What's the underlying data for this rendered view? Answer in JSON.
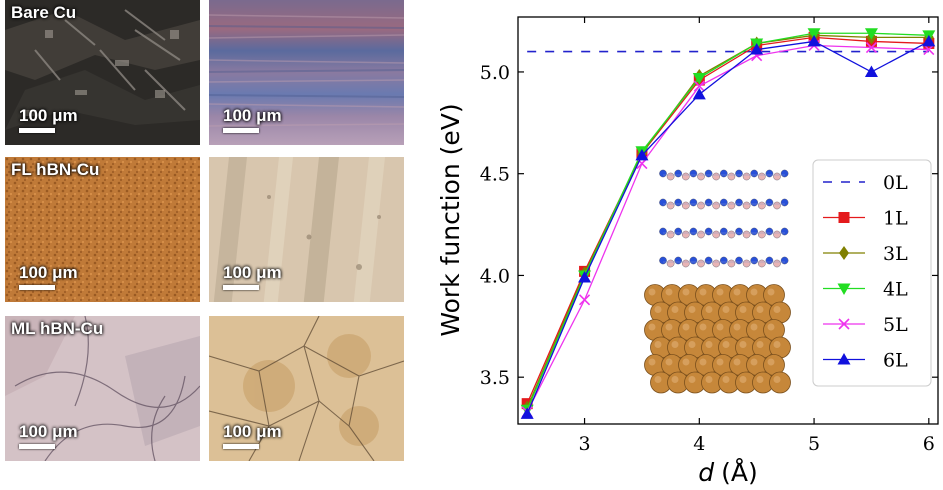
{
  "panels": {
    "row_labels": [
      "Bare Cu",
      "FL hBN-Cu",
      "ML hBN-Cu"
    ],
    "scale_label": "100 μm"
  },
  "chart_data": {
    "type": "line",
    "xlabel_italic": "d",
    "xlabel_unit": "(Å)",
    "ylabel": "Work function (eV)",
    "xlim": [
      2.42,
      6.08
    ],
    "ylim": [
      3.27,
      5.27
    ],
    "xticks": [
      3,
      4,
      5,
      6
    ],
    "yticks": [
      3.5,
      4.0,
      4.5,
      5.0
    ],
    "ytick_labels": [
      "3.5",
      "4.0",
      "4.5",
      "5.0"
    ],
    "grid": false,
    "legend_position": "center-right",
    "x": [
      2.5,
      3.0,
      3.5,
      4.0,
      4.5,
      5.0,
      5.5,
      6.0
    ],
    "series": [
      {
        "name": "0L",
        "color": "#2222cc",
        "marker": "none",
        "dashed": true,
        "values": [
          5.1,
          5.1,
          5.1,
          5.1,
          5.1,
          5.1,
          5.1,
          5.1
        ]
      },
      {
        "name": "1L",
        "color": "#e41a1c",
        "marker": "square",
        "values": [
          3.37,
          4.02,
          4.6,
          4.96,
          5.13,
          5.17,
          5.15,
          5.14
        ]
      },
      {
        "name": "3L",
        "color": "#808000",
        "marker": "diamond",
        "values": [
          3.35,
          4.01,
          4.6,
          4.98,
          5.14,
          5.18,
          5.17,
          5.17
        ]
      },
      {
        "name": "4L",
        "color": "#22dd22",
        "marker": "triangle-down",
        "values": [
          3.34,
          4.0,
          4.61,
          4.97,
          5.14,
          5.19,
          5.19,
          5.18
        ]
      },
      {
        "name": "5L",
        "color": "#ee33ee",
        "marker": "x",
        "values": [
          3.33,
          3.88,
          4.55,
          4.93,
          5.08,
          5.13,
          5.12,
          5.11
        ]
      },
      {
        "name": "6L",
        "color": "#1111dd",
        "marker": "triangle-up",
        "values": [
          3.32,
          3.99,
          4.59,
          4.89,
          5.11,
          5.15,
          5.0,
          5.15
        ]
      }
    ]
  }
}
